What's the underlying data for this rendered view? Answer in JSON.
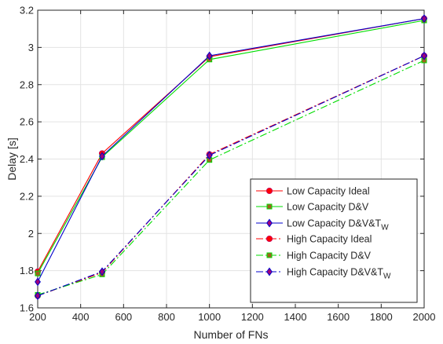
{
  "chart_data": {
    "type": "line",
    "xlabel": "Number of FNs",
    "ylabel": "Delay [s]",
    "xlim": [
      200,
      2000
    ],
    "ylim": [
      1.6,
      3.2
    ],
    "x": [
      200,
      500,
      1000,
      2000
    ],
    "xticks": [
      200,
      400,
      600,
      800,
      1000,
      1200,
      1400,
      1600,
      1800,
      2000
    ],
    "yticks": [
      1.6,
      1.8,
      2,
      2.2,
      2.4,
      2.6,
      2.8,
      3,
      3.2
    ],
    "xtick_labels": [
      "200",
      "400",
      "600",
      "800",
      "1000",
      "1200",
      "1400",
      "1600",
      "1800",
      "2000"
    ],
    "ytick_labels": [
      "1.6",
      "1.8",
      "2",
      "2.2",
      "2.4",
      "2.6",
      "2.8",
      "3",
      "3.2"
    ],
    "grid": true,
    "legend_position": "bottom-right",
    "series": [
      {
        "name": "Low Capacity Ideal",
        "color": "#ff0000",
        "linestyle": "solid",
        "marker": "circle",
        "values": [
          1.795,
          2.43,
          2.95,
          3.155
        ]
      },
      {
        "name": "Low Capacity D&V",
        "color": "#00dd00",
        "linestyle": "solid",
        "marker": "square",
        "values": [
          1.785,
          2.41,
          2.935,
          3.145
        ]
      },
      {
        "name": "Low Capacity D&V&T",
        "name_subscript": "W",
        "color": "#0000cc",
        "linestyle": "solid",
        "marker": "diamond",
        "values": [
          1.74,
          2.415,
          2.955,
          3.155
        ]
      },
      {
        "name": "High Capacity Ideal",
        "color": "#ff0000",
        "linestyle": "dashdot",
        "marker": "circle",
        "values": [
          1.665,
          1.79,
          2.425,
          2.955
        ]
      },
      {
        "name": "High Capacity  D&V",
        "color": "#00dd00",
        "linestyle": "dashdot",
        "marker": "square",
        "values": [
          1.67,
          1.78,
          2.395,
          2.93
        ]
      },
      {
        "name": "High Capacity  D&V&T",
        "name_subscript": "W",
        "color": "#0000cc",
        "linestyle": "dashdot",
        "marker": "diamond",
        "values": [
          1.665,
          1.795,
          2.42,
          2.955
        ]
      }
    ]
  }
}
